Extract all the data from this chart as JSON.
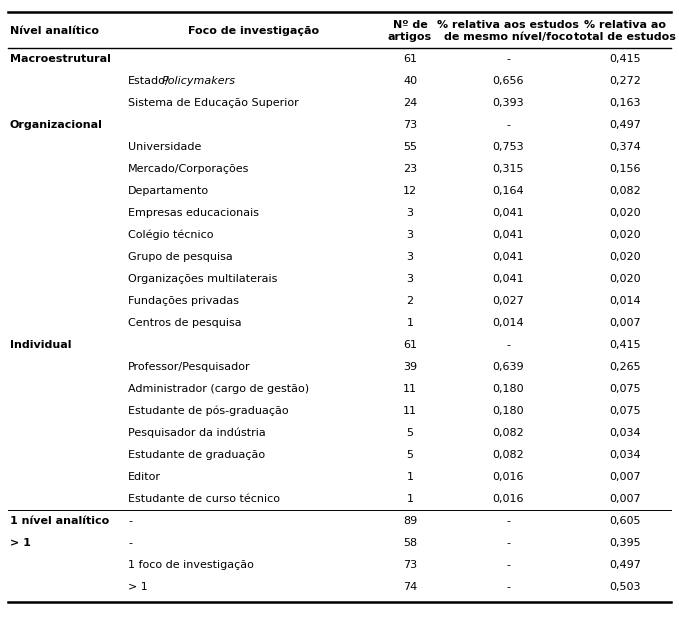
{
  "rows": [
    {
      "nivel": "Macroestrutural",
      "foco": "",
      "n": "61",
      "pct_nivel": "-",
      "pct_total": "0,415",
      "nivel_bold": true
    },
    {
      "nivel": "",
      "foco": "Estado/Policymakers",
      "n": "40",
      "pct_nivel": "0,656",
      "pct_total": "0,272",
      "nivel_bold": false,
      "mixed_italic": true
    },
    {
      "nivel": "",
      "foco": "Sistema de Educação Superior",
      "n": "24",
      "pct_nivel": "0,393",
      "pct_total": "0,163",
      "nivel_bold": false
    },
    {
      "nivel": "Organizacional",
      "foco": "",
      "n": "73",
      "pct_nivel": "-",
      "pct_total": "0,497",
      "nivel_bold": true
    },
    {
      "nivel": "",
      "foco": "Universidade",
      "n": "55",
      "pct_nivel": "0,753",
      "pct_total": "0,374",
      "nivel_bold": false
    },
    {
      "nivel": "",
      "foco": "Mercado/Corporações",
      "n": "23",
      "pct_nivel": "0,315",
      "pct_total": "0,156",
      "nivel_bold": false
    },
    {
      "nivel": "",
      "foco": "Departamento",
      "n": "12",
      "pct_nivel": "0,164",
      "pct_total": "0,082",
      "nivel_bold": false
    },
    {
      "nivel": "",
      "foco": "Empresas educacionais",
      "n": "3",
      "pct_nivel": "0,041",
      "pct_total": "0,020",
      "nivel_bold": false
    },
    {
      "nivel": "",
      "foco": "Colégio técnico",
      "n": "3",
      "pct_nivel": "0,041",
      "pct_total": "0,020",
      "nivel_bold": false
    },
    {
      "nivel": "",
      "foco": "Grupo de pesquisa",
      "n": "3",
      "pct_nivel": "0,041",
      "pct_total": "0,020",
      "nivel_bold": false
    },
    {
      "nivel": "",
      "foco": "Organizações multilaterais",
      "n": "3",
      "pct_nivel": "0,041",
      "pct_total": "0,020",
      "nivel_bold": false
    },
    {
      "nivel": "",
      "foco": "Fundações privadas",
      "n": "2",
      "pct_nivel": "0,027",
      "pct_total": "0,014",
      "nivel_bold": false
    },
    {
      "nivel": "",
      "foco": "Centros de pesquisa",
      "n": "1",
      "pct_nivel": "0,014",
      "pct_total": "0,007",
      "nivel_bold": false
    },
    {
      "nivel": "Individual",
      "foco": "",
      "n": "61",
      "pct_nivel": "-",
      "pct_total": "0,415",
      "nivel_bold": true
    },
    {
      "nivel": "",
      "foco": "Professor/Pesquisador",
      "n": "39",
      "pct_nivel": "0,639",
      "pct_total": "0,265",
      "nivel_bold": false
    },
    {
      "nivel": "",
      "foco": "Administrador (cargo de gestão)",
      "n": "11",
      "pct_nivel": "0,180",
      "pct_total": "0,075",
      "nivel_bold": false
    },
    {
      "nivel": "",
      "foco": "Estudante de pós-graduação",
      "n": "11",
      "pct_nivel": "0,180",
      "pct_total": "0,075",
      "nivel_bold": false
    },
    {
      "nivel": "",
      "foco": "Pesquisador da indústria",
      "n": "5",
      "pct_nivel": "0,082",
      "pct_total": "0,034",
      "nivel_bold": false
    },
    {
      "nivel": "",
      "foco": "Estudante de graduação",
      "n": "5",
      "pct_nivel": "0,082",
      "pct_total": "0,034",
      "nivel_bold": false
    },
    {
      "nivel": "",
      "foco": "Editor",
      "n": "1",
      "pct_nivel": "0,016",
      "pct_total": "0,007",
      "nivel_bold": false
    },
    {
      "nivel": "",
      "foco": "Estudante de curso técnico",
      "n": "1",
      "pct_nivel": "0,016",
      "pct_total": "0,007",
      "nivel_bold": false
    },
    {
      "nivel": "1 nível analítico",
      "foco": "-",
      "n": "89",
      "pct_nivel": "-",
      "pct_total": "0,605",
      "nivel_bold": true
    },
    {
      "nivel": "> 1",
      "foco": "-",
      "n": "58",
      "pct_nivel": "-",
      "pct_total": "0,395",
      "nivel_bold": true
    },
    {
      "nivel": "",
      "foco": "1 foco de investigação",
      "n": "73",
      "pct_nivel": "-",
      "pct_total": "0,497",
      "nivel_bold": false
    },
    {
      "nivel": "",
      "foco": "> 1",
      "n": "74",
      "pct_nivel": "-",
      "pct_total": "0,503",
      "nivel_bold": false
    }
  ],
  "bg_color": "#ffffff",
  "font_size": 8.0,
  "header_font_size": 8.0
}
